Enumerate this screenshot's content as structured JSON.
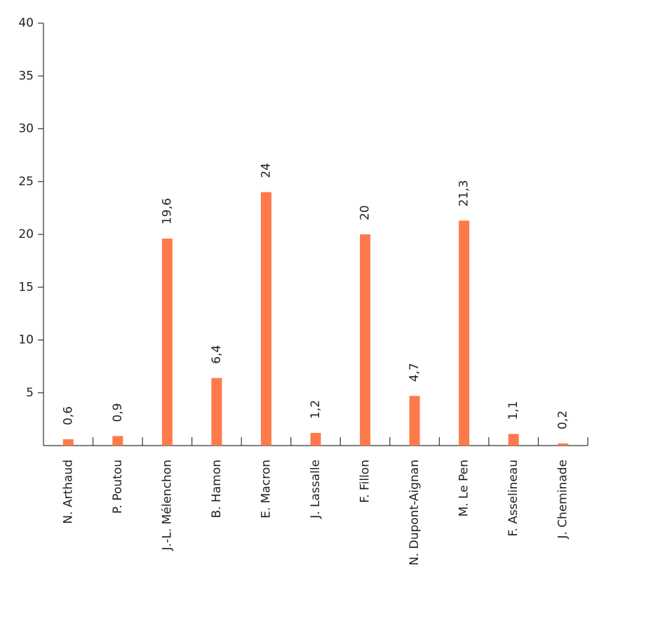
{
  "chart_data": {
    "type": "bar",
    "categories": [
      "N. Arthaud",
      "P. Poutou",
      "J.-L. Mélenchon",
      "B. Hamon",
      "E. Macron",
      "J. Lassalle",
      "F. Fillon",
      "N. Dupont-Aignan",
      "M. Le Pen",
      "F. Asselineau",
      "J. Cheminade"
    ],
    "values": [
      0.6,
      0.9,
      19.6,
      6.4,
      24,
      1.2,
      20,
      4.7,
      21.3,
      1.1,
      0.2
    ],
    "value_labels": [
      "0,6",
      "0,9",
      "19,6",
      "6,4",
      "24",
      "1,2",
      "20",
      "4,7",
      "21,3",
      "1,1",
      "0,2"
    ],
    "color": "#ff7a4a",
    "ylim": [
      0,
      40
    ],
    "yticks": [
      5,
      10,
      15,
      20,
      25,
      30,
      35,
      40
    ]
  }
}
